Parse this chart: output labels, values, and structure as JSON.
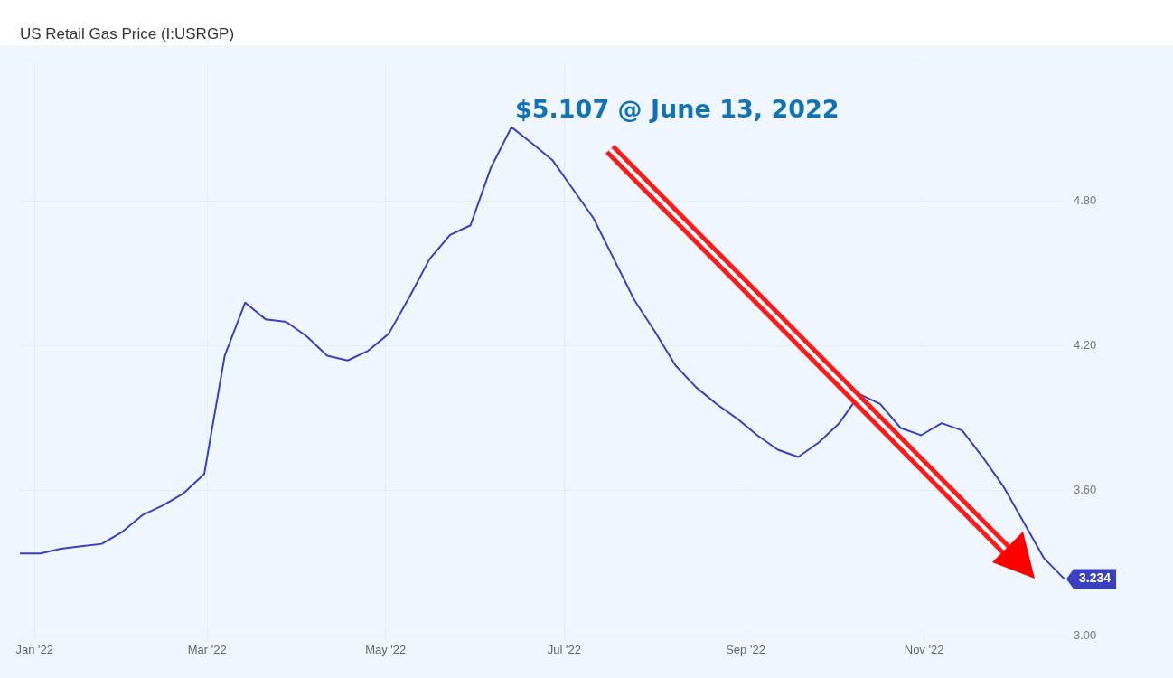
{
  "chart_data": {
    "type": "line",
    "title": "US Retail Gas Price (I:USRGP)",
    "x": [
      "2021-12-27",
      "2022-01-03",
      "2022-01-10",
      "2022-01-17",
      "2022-01-24",
      "2022-01-31",
      "2022-02-07",
      "2022-02-14",
      "2022-02-21",
      "2022-02-28",
      "2022-03-07",
      "2022-03-14",
      "2022-03-21",
      "2022-03-28",
      "2022-04-04",
      "2022-04-11",
      "2022-04-18",
      "2022-04-25",
      "2022-05-02",
      "2022-05-09",
      "2022-05-16",
      "2022-05-23",
      "2022-05-30",
      "2022-06-06",
      "2022-06-13",
      "2022-06-20",
      "2022-06-27",
      "2022-07-04",
      "2022-07-11",
      "2022-07-18",
      "2022-07-25",
      "2022-08-01",
      "2022-08-08",
      "2022-08-15",
      "2022-08-22",
      "2022-08-29",
      "2022-09-05",
      "2022-09-12",
      "2022-09-19",
      "2022-09-26",
      "2022-10-03",
      "2022-10-10",
      "2022-10-17",
      "2022-10-24",
      "2022-10-31",
      "2022-11-07",
      "2022-11-14",
      "2022-11-21",
      "2022-11-28",
      "2022-12-05",
      "2022-12-12",
      "2022-12-19"
    ],
    "series": [
      {
        "color": "#3b3fc2",
        "values": [
          3.34,
          3.34,
          3.36,
          3.37,
          3.38,
          3.43,
          3.5,
          3.54,
          3.59,
          3.67,
          4.16,
          4.38,
          4.31,
          4.3,
          4.24,
          4.16,
          4.14,
          4.18,
          4.25,
          4.4,
          4.56,
          4.66,
          4.7,
          4.94,
          5.107,
          5.04,
          4.97,
          4.85,
          4.73,
          4.56,
          4.39,
          4.26,
          4.12,
          4.03,
          3.96,
          3.9,
          3.83,
          3.77,
          3.74,
          3.8,
          3.88,
          4.0,
          3.96,
          3.86,
          3.83,
          3.88,
          3.85,
          3.74,
          3.62,
          3.47,
          3.32,
          3.234
        ],
        "value_labels": [
          null,
          null,
          null,
          null,
          null,
          null,
          null,
          null,
          null,
          null,
          null,
          null,
          null,
          null,
          null,
          null,
          null,
          null,
          null,
          null,
          null,
          null,
          null,
          null,
          null,
          null,
          null,
          null,
          null,
          null,
          null,
          null,
          null,
          null,
          null,
          null,
          null,
          null,
          null,
          null,
          null,
          null,
          null,
          null,
          null,
          null,
          null,
          null,
          null,
          null,
          null,
          "3.234"
        ]
      }
    ],
    "xlim": [
      "2021-12-27",
      "2022-12-19"
    ],
    "xticks": [
      {
        "value": "2022-01-01",
        "label": "Jan '22"
      },
      {
        "value": "2022-03-01",
        "label": "Mar '22"
      },
      {
        "value": "2022-05-01",
        "label": "May '22"
      },
      {
        "value": "2022-07-01",
        "label": "Jul '22"
      },
      {
        "value": "2022-09-01",
        "label": "Sep '22"
      },
      {
        "value": "2022-11-01",
        "label": "Nov '22"
      }
    ],
    "ylim": [
      2.98,
      5.37
    ],
    "yticks": [
      {
        "value": 3,
        "label": "3.00"
      },
      {
        "value": 3.6,
        "label": "3.60"
      },
      {
        "value": 4.2,
        "label": "4.20"
      },
      {
        "value": 4.8,
        "label": "4.80"
      }
    ],
    "annotations": [
      {
        "text": "$5.107 @ June 13, 2022",
        "x": "2022-06-13",
        "y": 5.107
      }
    ],
    "grid": true,
    "legend": false,
    "marker": "none",
    "line_style": "solid"
  }
}
